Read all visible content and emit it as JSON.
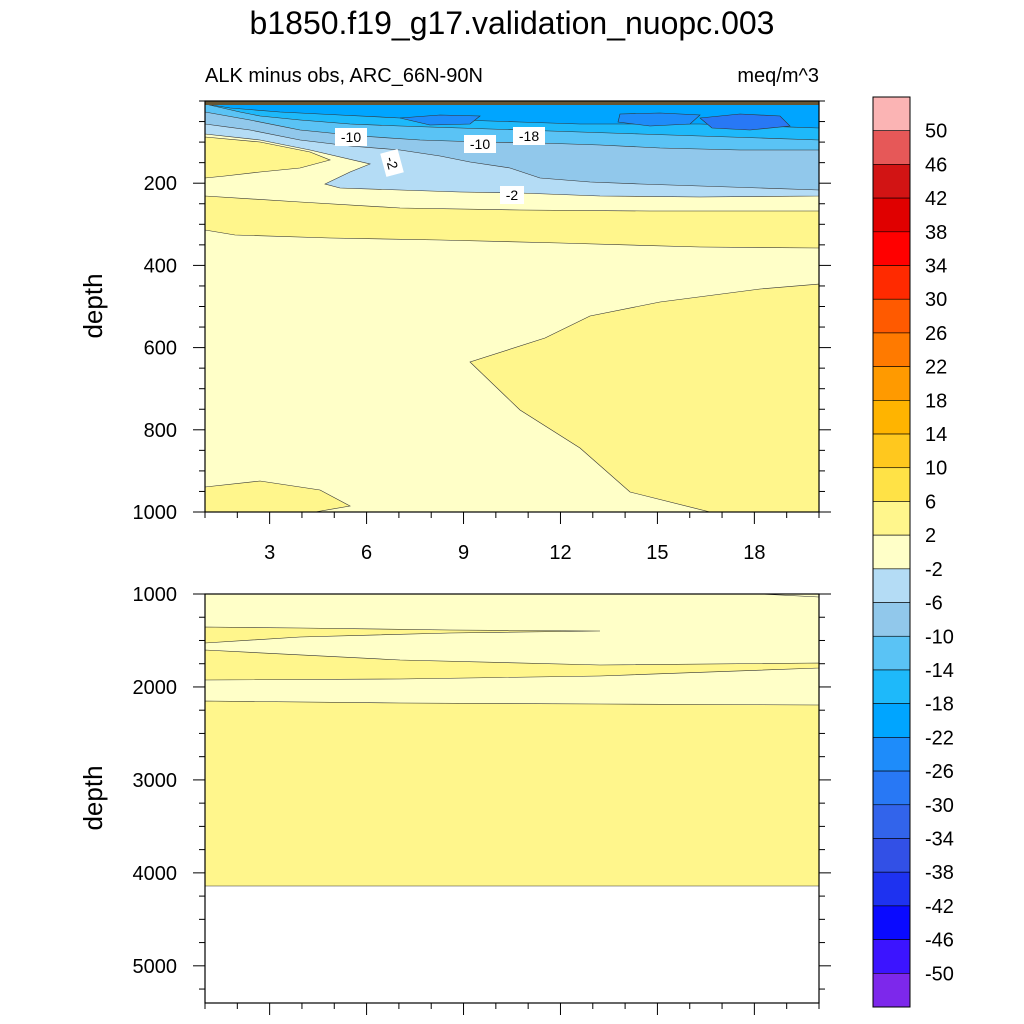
{
  "chart_data": {
    "type": "contour",
    "title": "b1850.f19_g17.validation_nuopc.003",
    "subtitle_left": "ALK minus obs, ARC_66N-90N",
    "subtitle_right": "meq/m^3",
    "x": {
      "range": [
        1,
        20
      ],
      "ticks": [
        "3",
        "6",
        "9",
        "12",
        "15",
        "18"
      ]
    },
    "panels": [
      {
        "name": "upper",
        "ylabel": "depth",
        "ylim": [
          0,
          1000
        ],
        "yticks": [
          "200",
          "400",
          "600",
          "800",
          "1000"
        ]
      },
      {
        "name": "lower",
        "ylabel": "depth",
        "ylim": [
          1000,
          5400
        ],
        "yticks": [
          "1000",
          "2000",
          "3000",
          "4000",
          "5000"
        ]
      }
    ],
    "contour_labels": [
      "-10",
      "-10",
      "-18",
      "-2",
      "-2"
    ],
    "levels": [
      "50",
      "46",
      "42",
      "38",
      "34",
      "30",
      "26",
      "22",
      "18",
      "14",
      "10",
      "6",
      "2",
      "-2",
      "-6",
      "-10",
      "-14",
      "-18",
      "-22",
      "-26",
      "-30",
      "-34",
      "-38",
      "-42",
      "-46",
      "-50"
    ],
    "colors": [
      "#fbb4b4",
      "#e65858",
      "#d21414",
      "#e00000",
      "#ff0000",
      "#ff2a00",
      "#ff5a00",
      "#ff7a00",
      "#ff9a00",
      "#ffb400",
      "#ffc81e",
      "#ffe246",
      "#fff68c",
      "#ffffc8",
      "#b4dcf5",
      "#91c8eb",
      "#5ac3f5",
      "#1eb9fa",
      "#00a5ff",
      "#1e8cfa",
      "#2878f5",
      "#3264eb",
      "#3250e6",
      "#1e32f0",
      "#0a0aff",
      "#3c14ff",
      "#7d28eb"
    ]
  }
}
